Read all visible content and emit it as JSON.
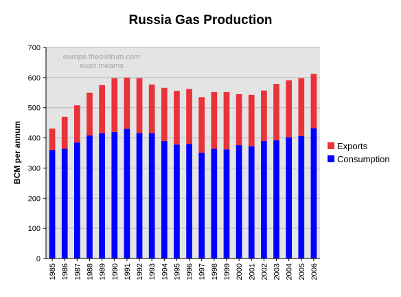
{
  "chart_data": {
    "type": "bar",
    "stacked": true,
    "title": "Russia Gas Production",
    "ylabel": "BCM per annum",
    "xlabel": "",
    "ylim": [
      0,
      700
    ],
    "yticks": [
      0,
      100,
      200,
      300,
      400,
      500,
      600,
      700
    ],
    "grid": true,
    "legend_position": "right",
    "watermark": [
      "europe.theoildrum.com",
      "euan mearns"
    ],
    "categories": [
      "1985",
      "1986",
      "1987",
      "1988",
      "1989",
      "1990",
      "1991",
      "1992",
      "1993",
      "1994",
      "1995",
      "1996",
      "1997",
      "1998",
      "1999",
      "2000",
      "2001",
      "2002",
      "2003",
      "2004",
      "2005",
      "2006"
    ],
    "series": [
      {
        "name": "Consumption",
        "color": "#0000ff",
        "values": [
          360,
          364,
          385,
          408,
          415,
          420,
          430,
          416,
          415,
          390,
          378,
          380,
          350,
          364,
          362,
          376,
          372,
          390,
          392,
          402,
          406,
          432
        ]
      },
      {
        "name": "Exports",
        "color": "#e8333a",
        "values": [
          71,
          106,
          123,
          142,
          160,
          178,
          170,
          182,
          162,
          176,
          178,
          182,
          185,
          188,
          190,
          169,
          171,
          167,
          187,
          189,
          192,
          180
        ]
      }
    ],
    "legend_order": [
      "Exports",
      "Consumption"
    ]
  }
}
